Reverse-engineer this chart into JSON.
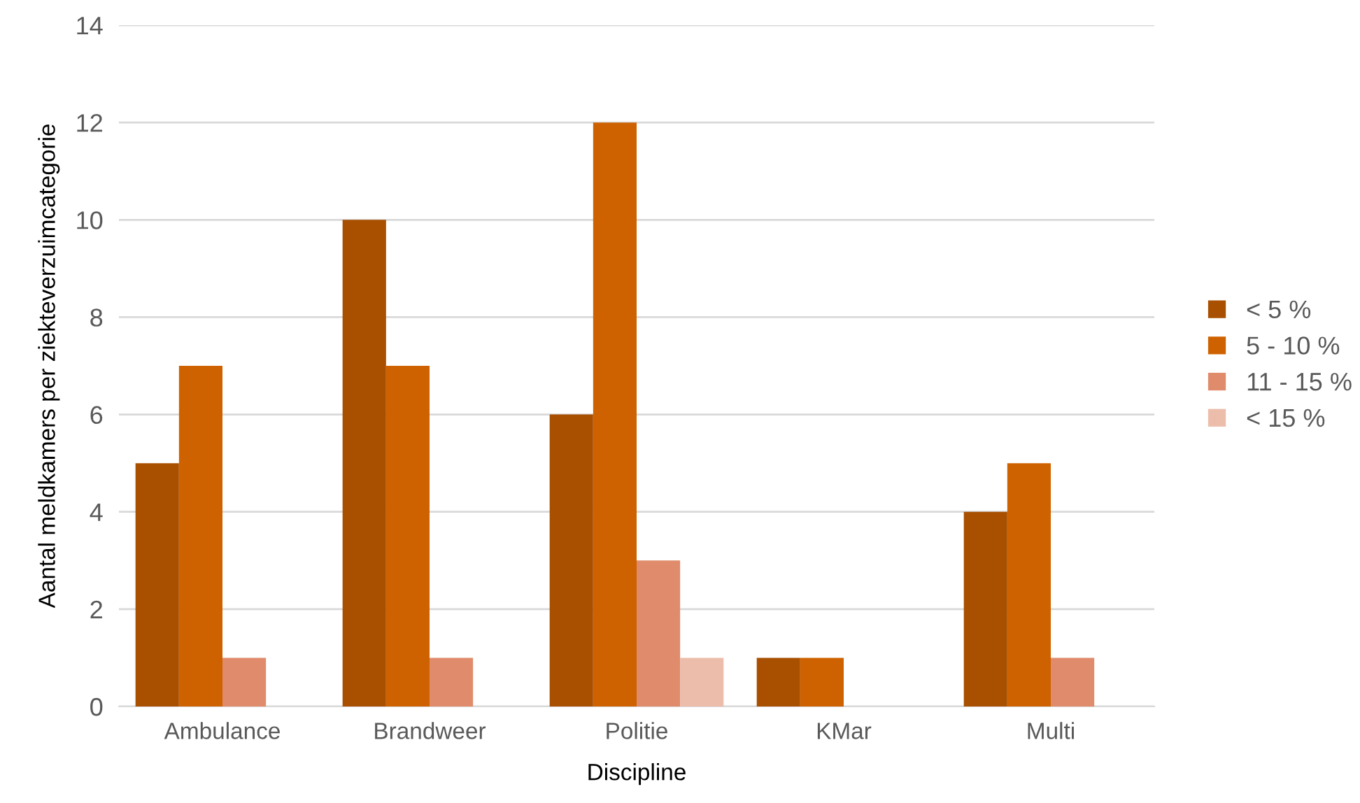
{
  "chart_data": {
    "type": "bar",
    "xlabel": "Discipline",
    "ylabel": "Aantal meldkamers per ziekteverzuimcategorie",
    "categories": [
      "Ambulance",
      "Brandweer",
      "Politie",
      "KMar",
      "Multi"
    ],
    "series": [
      {
        "name": "< 5 %",
        "color": "#a84f00",
        "values": [
          5,
          10,
          6,
          1,
          4
        ]
      },
      {
        "name": "5 - 10 %",
        "color": "#cf6200",
        "values": [
          7,
          7,
          12,
          1,
          5
        ]
      },
      {
        "name": "11 - 15 %",
        "color": "#e08b6b",
        "values": [
          1,
          1,
          3,
          0,
          1
        ]
      },
      {
        "name": "< 15 %",
        "color": "#ecbdaa",
        "values": [
          0,
          0,
          1,
          0,
          0
        ]
      }
    ],
    "ylim": [
      0,
      14
    ],
    "yticks": [
      0,
      2,
      4,
      6,
      8,
      10,
      12,
      14
    ],
    "grid": "y",
    "legend": "right"
  }
}
